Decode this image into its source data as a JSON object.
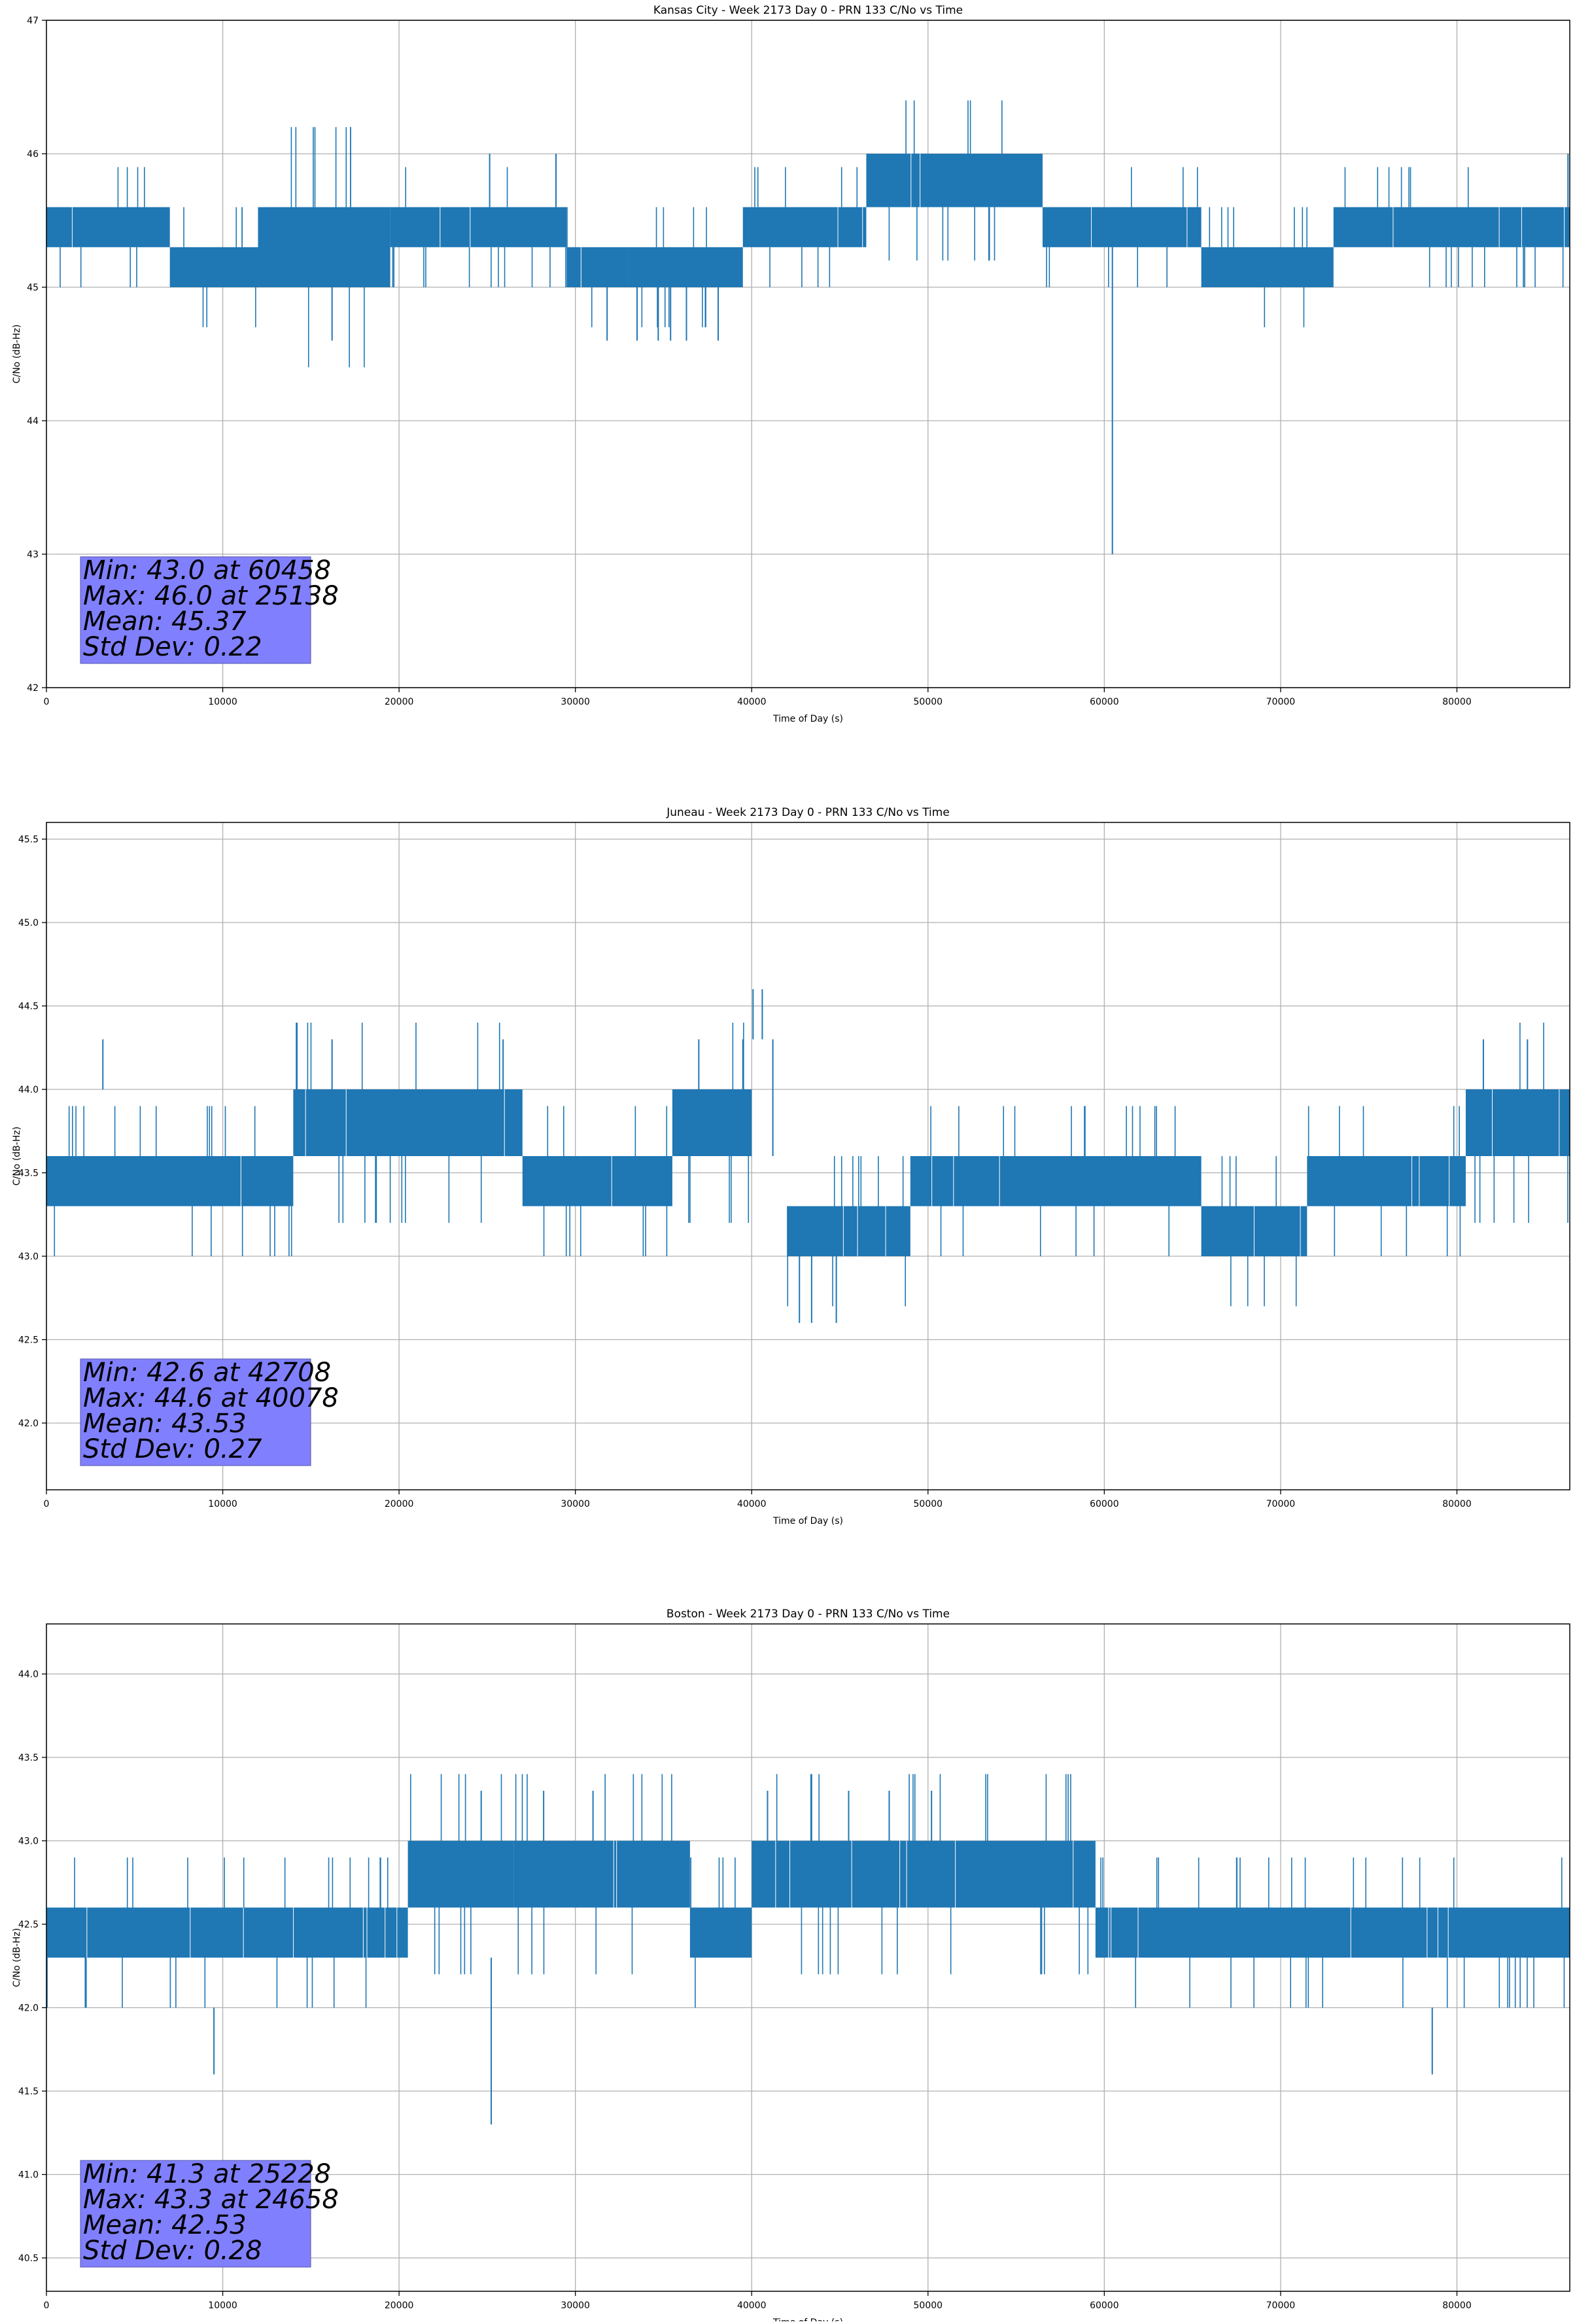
{
  "chart_data": [
    {
      "type": "line",
      "title": "Kansas City - Week 2173 Day 0 - PRN 133 C/No vs Time",
      "xlabel": "Time of Day (s)",
      "ylabel": "C/No (dB-Hz)",
      "xlim": [
        0,
        86400
      ],
      "ylim": [
        42,
        47
      ],
      "xticks": [
        0,
        10000,
        20000,
        30000,
        40000,
        50000,
        60000,
        70000,
        80000
      ],
      "yticks": [
        42,
        43,
        44,
        45,
        46,
        47
      ],
      "ytick_labels": [
        "42",
        "43",
        "44",
        "45",
        "46",
        "47"
      ],
      "grid": true,
      "color": "#1f77b4",
      "stats": {
        "min_label": "Min: 43.0 at 60458",
        "max_label": "Max: 46.0 at 25138",
        "mean_label": "Mean: 45.37",
        "std_label": "Std Dev: 0.22"
      },
      "bands": [
        {
          "x": [
            0,
            7000
          ],
          "low": 45.3,
          "high": 45.6
        },
        {
          "x": [
            7000,
            12000
          ],
          "low": 45.0,
          "high": 45.3
        },
        {
          "x": [
            12000,
            19500
          ],
          "low": 45.0,
          "high": 45.6
        },
        {
          "x": [
            19500,
            29500
          ],
          "low": 45.3,
          "high": 45.6
        },
        {
          "x": [
            29500,
            33000
          ],
          "low": 45.0,
          "high": 45.3
        },
        {
          "x": [
            33000,
            39500
          ],
          "low": 45.0,
          "high": 45.3
        },
        {
          "x": [
            39500,
            46500
          ],
          "low": 45.3,
          "high": 45.6
        },
        {
          "x": [
            46500,
            56500
          ],
          "low": 45.6,
          "high": 46.0
        },
        {
          "x": [
            56500,
            65500
          ],
          "low": 45.3,
          "high": 45.6
        },
        {
          "x": [
            65500,
            73000
          ],
          "low": 45.0,
          "high": 45.3
        },
        {
          "x": [
            73000,
            86400
          ],
          "low": 45.3,
          "high": 45.6
        }
      ],
      "spikes": [
        {
          "x": 16200,
          "low": 44.6,
          "high": 45.0
        },
        {
          "x": 25138,
          "low": 45.6,
          "high": 46.0
        },
        {
          "x": 28900,
          "low": 45.6,
          "high": 46.0
        },
        {
          "x": 31800,
          "low": 44.6,
          "high": 45.0
        },
        {
          "x": 33500,
          "low": 44.6,
          "high": 45.0
        },
        {
          "x": 34700,
          "low": 44.6,
          "high": 45.0
        },
        {
          "x": 35400,
          "low": 44.6,
          "high": 45.0
        },
        {
          "x": 36300,
          "low": 44.6,
          "high": 45.0
        },
        {
          "x": 38100,
          "low": 44.6,
          "high": 45.0
        },
        {
          "x": 60458,
          "low": 43.0,
          "high": 45.3
        },
        {
          "x": 86300,
          "low": 45.6,
          "high": 46.0
        }
      ]
    },
    {
      "type": "line",
      "title": "Juneau - Week 2173 Day 0 - PRN 133 C/No vs Time",
      "xlabel": "Time of Day (s)",
      "ylabel": "C/No (dB-Hz)",
      "xlim": [
        0,
        86400
      ],
      "ylim": [
        41.6,
        45.6
      ],
      "xticks": [
        0,
        10000,
        20000,
        30000,
        40000,
        50000,
        60000,
        70000,
        80000
      ],
      "yticks": [
        42.0,
        42.5,
        43.0,
        43.5,
        44.0,
        44.5,
        45.0,
        45.5
      ],
      "ytick_labels": [
        "42.0",
        "42.5",
        "43.0",
        "43.5",
        "44.0",
        "44.5",
        "45.0",
        "45.5"
      ],
      "grid": true,
      "color": "#1f77b4",
      "stats": {
        "min_label": "Min: 42.6 at 42708",
        "max_label": "Max: 44.6 at 40078",
        "mean_label": "Mean: 43.53",
        "std_label": "Std Dev: 0.27"
      },
      "bands": [
        {
          "x": [
            0,
            14000
          ],
          "low": 43.3,
          "high": 43.6
        },
        {
          "x": [
            14000,
            27000
          ],
          "low": 43.6,
          "high": 44.0
        },
        {
          "x": [
            27000,
            35500
          ],
          "low": 43.3,
          "high": 43.6
        },
        {
          "x": [
            35500,
            40000
          ],
          "low": 43.6,
          "high": 44.0
        },
        {
          "x": [
            42000,
            49000
          ],
          "low": 43.0,
          "high": 43.3
        },
        {
          "x": [
            49000,
            65500
          ],
          "low": 43.3,
          "high": 43.6
        },
        {
          "x": [
            65500,
            71500
          ],
          "low": 43.0,
          "high": 43.3
        },
        {
          "x": [
            71500,
            80500
          ],
          "low": 43.3,
          "high": 43.6
        },
        {
          "x": [
            80500,
            86400
          ],
          "low": 43.6,
          "high": 44.0
        }
      ],
      "spikes": [
        {
          "x": 3200,
          "low": 44.0,
          "high": 44.3
        },
        {
          "x": 16200,
          "low": 44.0,
          "high": 44.3
        },
        {
          "x": 25900,
          "low": 44.0,
          "high": 44.3
        },
        {
          "x": 37000,
          "low": 44.0,
          "high": 44.3
        },
        {
          "x": 39500,
          "low": 44.0,
          "high": 44.3
        },
        {
          "x": 40078,
          "low": 44.3,
          "high": 44.6
        },
        {
          "x": 40600,
          "low": 44.3,
          "high": 44.6
        },
        {
          "x": 41200,
          "low": 43.6,
          "high": 44.3
        },
        {
          "x": 42708,
          "low": 42.6,
          "high": 43.0
        },
        {
          "x": 43400,
          "low": 42.6,
          "high": 43.0
        },
        {
          "x": 44800,
          "low": 42.6,
          "high": 43.0
        },
        {
          "x": 81500,
          "low": 44.0,
          "high": 44.3
        },
        {
          "x": 84000,
          "low": 44.0,
          "high": 44.3
        }
      ]
    },
    {
      "type": "line",
      "title": "Boston - Week 2173 Day 0 - PRN 133 C/No vs Time",
      "xlabel": "Time of Day (s)",
      "ylabel": "C/No (dB-Hz)",
      "xlim": [
        0,
        86400
      ],
      "ylim": [
        40.3,
        44.3
      ],
      "xticks": [
        0,
        10000,
        20000,
        30000,
        40000,
        50000,
        60000,
        70000,
        80000
      ],
      "yticks": [
        40.5,
        41.0,
        41.5,
        42.0,
        42.5,
        43.0,
        43.5,
        44.0
      ],
      "ytick_labels": [
        "40.5",
        "41.0",
        "41.5",
        "42.0",
        "42.5",
        "43.0",
        "43.5",
        "44.0"
      ],
      "grid": true,
      "color": "#1f77b4",
      "stats": {
        "min_label": "Min: 41.3 at 25228",
        "max_label": "Max: 43.3 at 24658",
        "mean_label": "Mean: 42.53",
        "std_label": "Std Dev: 0.28"
      },
      "bands": [
        {
          "x": [
            0,
            20500
          ],
          "low": 42.3,
          "high": 42.6
        },
        {
          "x": [
            20500,
            26500
          ],
          "low": 42.6,
          "high": 43.0
        },
        {
          "x": [
            26500,
            36500
          ],
          "low": 42.6,
          "high": 43.0
        },
        {
          "x": [
            36500,
            40000
          ],
          "low": 42.3,
          "high": 42.6
        },
        {
          "x": [
            40000,
            59500
          ],
          "low": 42.6,
          "high": 43.0
        },
        {
          "x": [
            59500,
            79000
          ],
          "low": 42.3,
          "high": 42.6
        },
        {
          "x": [
            79000,
            86400
          ],
          "low": 42.3,
          "high": 42.6
        }
      ],
      "spikes": [
        {
          "x": 9500,
          "low": 41.6,
          "high": 42.0
        },
        {
          "x": 24658,
          "low": 43.0,
          "high": 43.3
        },
        {
          "x": 25228,
          "low": 41.3,
          "high": 42.3
        },
        {
          "x": 28200,
          "low": 43.0,
          "high": 43.3
        },
        {
          "x": 31000,
          "low": 43.0,
          "high": 43.3
        },
        {
          "x": 40900,
          "low": 43.0,
          "high": 43.3
        },
        {
          "x": 45500,
          "low": 43.0,
          "high": 43.3
        },
        {
          "x": 47800,
          "low": 43.0,
          "high": 43.3
        },
        {
          "x": 50200,
          "low": 43.0,
          "high": 43.3
        },
        {
          "x": 78600,
          "low": 41.6,
          "high": 42.0
        }
      ]
    }
  ]
}
